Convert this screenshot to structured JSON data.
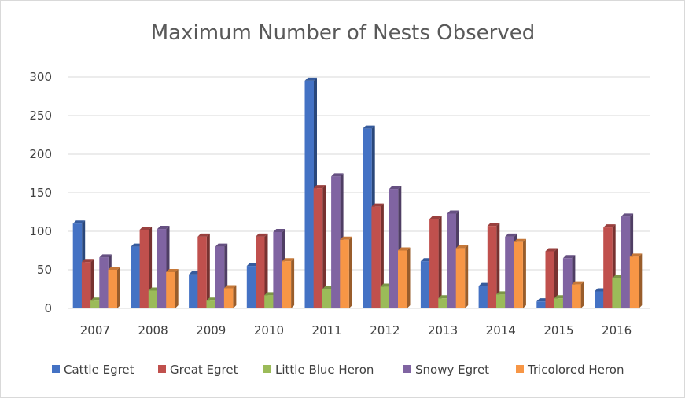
{
  "chart_data": {
    "type": "bar",
    "title": "Maximum Number of Nests Observed",
    "xlabel": "",
    "ylabel": "",
    "ylim": [
      0,
      300
    ],
    "yticks": [
      "0",
      "50",
      "100",
      "150",
      "200",
      "250",
      "300"
    ],
    "grid": true,
    "legend_position": "bottom",
    "categories": [
      "2007",
      "2008",
      "2009",
      "2010",
      "2011",
      "2012",
      "2013",
      "2014",
      "2015",
      "2016"
    ],
    "series": [
      {
        "name": "Cattle Egret",
        "color": "#4472c4",
        "values": [
          110,
          80,
          44,
          55,
          295,
          233,
          61,
          29,
          9,
          22
        ]
      },
      {
        "name": "Great Egret",
        "color": "#c0504d",
        "values": [
          60,
          102,
          93,
          93,
          156,
          132,
          116,
          107,
          74,
          105
        ]
      },
      {
        "name": "Little Blue Heron",
        "color": "#9bbb59",
        "values": [
          10,
          23,
          10,
          17,
          25,
          28,
          13,
          18,
          13,
          39
        ]
      },
      {
        "name": "Snowy Egret",
        "color": "#8064a2",
        "values": [
          66,
          103,
          80,
          99,
          171,
          155,
          123,
          93,
          65,
          119
        ]
      },
      {
        "name": "Tricolored Heron",
        "color": "#f79646",
        "values": [
          50,
          47,
          26,
          61,
          89,
          75,
          78,
          86,
          31,
          67
        ]
      }
    ]
  }
}
